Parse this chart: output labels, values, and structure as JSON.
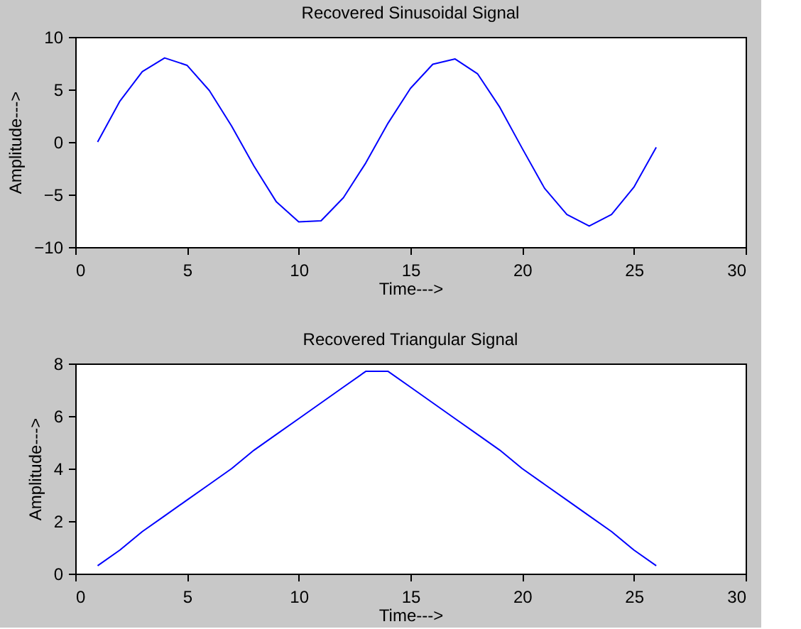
{
  "chart_data": [
    {
      "type": "line",
      "title": "Recovered Sinusoidal Signal",
      "xlabel": "Time--->",
      "ylabel": "Amplitude--->",
      "x": [
        1,
        2,
        3,
        4,
        5,
        6,
        7,
        8,
        9,
        10,
        11,
        12,
        13,
        14,
        15,
        16,
        17,
        18,
        19,
        20,
        21,
        22,
        23,
        24,
        25,
        26
      ],
      "series": [
        {
          "color": "#0000ff",
          "values": [
            0,
            3.9,
            6.7,
            8.0,
            7.3,
            4.9,
            1.5,
            -2.3,
            -5.7,
            -7.6,
            -7.5,
            -5.3,
            -2.0,
            1.8,
            5.1,
            7.4,
            7.9,
            6.5,
            3.3,
            -0.6,
            -4.4,
            -6.9,
            -8.0,
            -6.9,
            -4.3,
            -0.5
          ]
        }
      ],
      "xlim": [
        0,
        30
      ],
      "xticks": [
        0,
        5,
        10,
        15,
        20,
        25,
        30
      ],
      "ylim": [
        -10,
        10
      ],
      "yticks": [
        -10,
        -5,
        0,
        5,
        10
      ],
      "grid": false
    },
    {
      "type": "line",
      "title": "Recovered Triangular Signal",
      "xlabel": "Time--->",
      "ylabel": "Amplitude--->",
      "x": [
        1,
        2,
        3,
        4,
        5,
        6,
        7,
        8,
        9,
        10,
        11,
        12,
        13,
        14,
        15,
        16,
        17,
        18,
        19,
        20,
        21,
        22,
        23,
        24,
        25,
        26
      ],
      "series": [
        {
          "color": "#0000ff",
          "values": [
            0.3,
            0.9,
            1.6,
            2.2,
            2.8,
            3.4,
            4.0,
            4.7,
            5.3,
            5.9,
            6.5,
            7.1,
            7.7,
            7.7,
            7.1,
            6.5,
            5.9,
            5.3,
            4.7,
            4.0,
            3.4,
            2.8,
            2.2,
            1.6,
            0.9,
            0.3
          ]
        }
      ],
      "xlim": [
        0,
        30
      ],
      "xticks": [
        0,
        5,
        10,
        15,
        20,
        25,
        30
      ],
      "ylim": [
        0,
        8
      ],
      "yticks": [
        0,
        2,
        4,
        6,
        8
      ],
      "grid": false
    }
  ]
}
